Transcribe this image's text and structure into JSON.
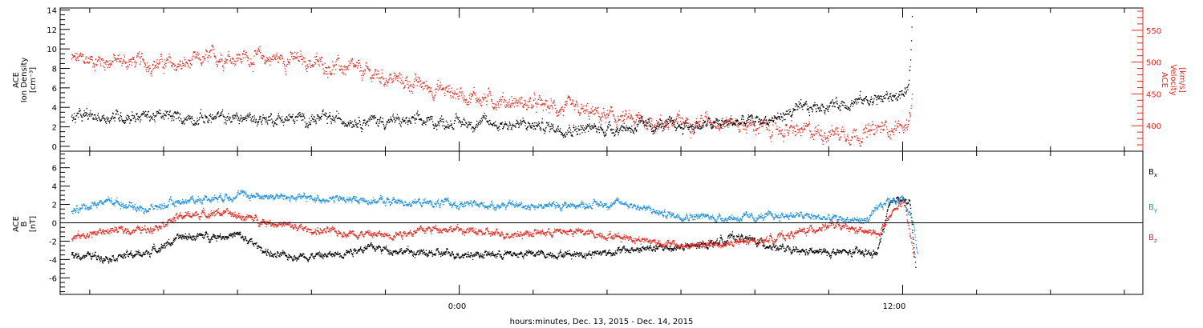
{
  "colors": {
    "black": "#000000",
    "red": "#e8241c",
    "blue": "#1a8fe0",
    "axis": "#000000"
  },
  "chart_data": [
    {
      "type": "scatter",
      "name": "density-velocity",
      "ylabel_lines": [
        "ACE",
        "Ion Density"
      ],
      "ylabel_unit": "[cm⁻³]",
      "y2label_lines": [
        "ACE",
        "Velocity"
      ],
      "y2label_unit": "[km/s]",
      "ylim": [
        -0.5,
        14.2
      ],
      "y2lim": [
        360,
        585
      ],
      "yticks": [
        0,
        2,
        4,
        6,
        8,
        10,
        12,
        14
      ],
      "y2ticks": [
        400,
        450,
        500,
        550
      ],
      "anchors_left": [
        [
          -10.5,
          3.0
        ],
        [
          -8.5,
          3.2
        ],
        [
          -7.5,
          3.0
        ],
        [
          -5.5,
          2.9
        ],
        [
          -3.0,
          2.8
        ],
        [
          -1.5,
          2.6
        ],
        [
          0.5,
          2.5
        ],
        [
          3.5,
          1.8
        ],
        [
          5.0,
          2.1
        ],
        [
          6.5,
          2.2
        ],
        [
          8.5,
          2.8
        ],
        [
          9.0,
          3.6
        ],
        [
          10.0,
          4.3
        ],
        [
          11.0,
          4.8
        ],
        [
          11.5,
          5.0
        ],
        [
          12.1,
          5.5
        ],
        [
          12.2,
          8.0
        ],
        [
          12.25,
          13.0
        ]
      ],
      "anchors_right": [
        [
          -10.5,
          505
        ],
        [
          -8.5,
          500
        ],
        [
          -7.5,
          495
        ],
        [
          -6.5,
          510
        ],
        [
          -4.5,
          505
        ],
        [
          -3.0,
          490
        ],
        [
          -1.5,
          470
        ],
        [
          0.5,
          445
        ],
        [
          2.5,
          430
        ],
        [
          4.5,
          410
        ],
        [
          5.5,
          405
        ],
        [
          7.0,
          410
        ],
        [
          8.0,
          400
        ],
        [
          9.0,
          392
        ],
        [
          10.5,
          390
        ],
        [
          11.0,
          388
        ],
        [
          11.5,
          398
        ],
        [
          12.1,
          398
        ],
        [
          12.25,
          445
        ]
      ]
    },
    {
      "type": "scatter",
      "name": "magnetic-field",
      "ylabel_lines": [
        "ACE",
        "B"
      ],
      "ylabel_unit": "[nT]",
      "ylim": [
        -7.8,
        7.8
      ],
      "yticks": [
        -6,
        -4,
        -2,
        0,
        2,
        4,
        6
      ],
      "series": [
        {
          "name": "B",
          "sub": "x",
          "color_key": "black",
          "anchors": [
            [
              -10.5,
              -3.4
            ],
            [
              -9.5,
              -3.7
            ],
            [
              -8.5,
              -3.3
            ],
            [
              -7.5,
              -1.5
            ],
            [
              -6.0,
              -1.3
            ],
            [
              -5.0,
              -3.6
            ],
            [
              -3.5,
              -3.5
            ],
            [
              -2.5,
              -2.6
            ],
            [
              -1.0,
              -3.3
            ],
            [
              1.0,
              -3.4
            ],
            [
              3.5,
              -3.3
            ],
            [
              5.0,
              -2.8
            ],
            [
              6.5,
              -2.5
            ],
            [
              7.5,
              -1.4
            ],
            [
              9.0,
              -3.1
            ],
            [
              10.5,
              -3.2
            ],
            [
              11.3,
              -3.3
            ],
            [
              11.6,
              1.5
            ],
            [
              11.9,
              3.0
            ],
            [
              12.2,
              2.0
            ],
            [
              12.35,
              -5.5
            ]
          ]
        },
        {
          "name": "B",
          "sub": "y",
          "color_key": "blue",
          "anchors": [
            [
              -10.5,
              1.4
            ],
            [
              -9.5,
              2.5
            ],
            [
              -8.5,
              1.5
            ],
            [
              -7.5,
              2.4
            ],
            [
              -6.0,
              3.1
            ],
            [
              -4.5,
              2.8
            ],
            [
              -2.5,
              2.5
            ],
            [
              -1.5,
              2.3
            ],
            [
              0.5,
              2.0
            ],
            [
              2.5,
              1.9
            ],
            [
              4.5,
              2.2
            ],
            [
              5.5,
              1.0
            ],
            [
              7.0,
              0.6
            ],
            [
              8.0,
              0.6
            ],
            [
              9.0,
              0.9
            ],
            [
              10.0,
              0.5
            ],
            [
              11.0,
              0.3
            ],
            [
              11.6,
              2.5
            ],
            [
              12.0,
              2.7
            ],
            [
              12.3,
              0.0
            ],
            [
              12.4,
              -3.5
            ]
          ]
        },
        {
          "name": "B",
          "sub": "z",
          "color_key": "red",
          "anchors": [
            [
              -10.5,
              -1.6
            ],
            [
              -9.5,
              -0.8
            ],
            [
              -8.5,
              -0.7
            ],
            [
              -7.5,
              0.8
            ],
            [
              -6.5,
              1.2
            ],
            [
              -5.0,
              0.0
            ],
            [
              -4.0,
              -0.8
            ],
            [
              -2.0,
              -1.3
            ],
            [
              -0.5,
              -0.5
            ],
            [
              1.0,
              -1.2
            ],
            [
              3.0,
              -0.9
            ],
            [
              4.5,
              -1.5
            ],
            [
              6.0,
              -2.5
            ],
            [
              7.0,
              -2.3
            ],
            [
              8.0,
              -2.0
            ],
            [
              9.0,
              -1.2
            ],
            [
              10.0,
              -0.2
            ],
            [
              11.3,
              -1.2
            ],
            [
              11.8,
              1.5
            ],
            [
              12.0,
              2.5
            ],
            [
              12.3,
              -3.5
            ]
          ]
        }
      ]
    }
  ],
  "xaxis": {
    "range": [
      -10.8,
      18.5
    ],
    "major_ticks": [
      0,
      12
    ],
    "tick_labels": [
      "0:00",
      "12:00"
    ],
    "minor_step": 2,
    "label": "hours:minutes, Dec. 13, 2015 - Dec. 14, 2015"
  }
}
